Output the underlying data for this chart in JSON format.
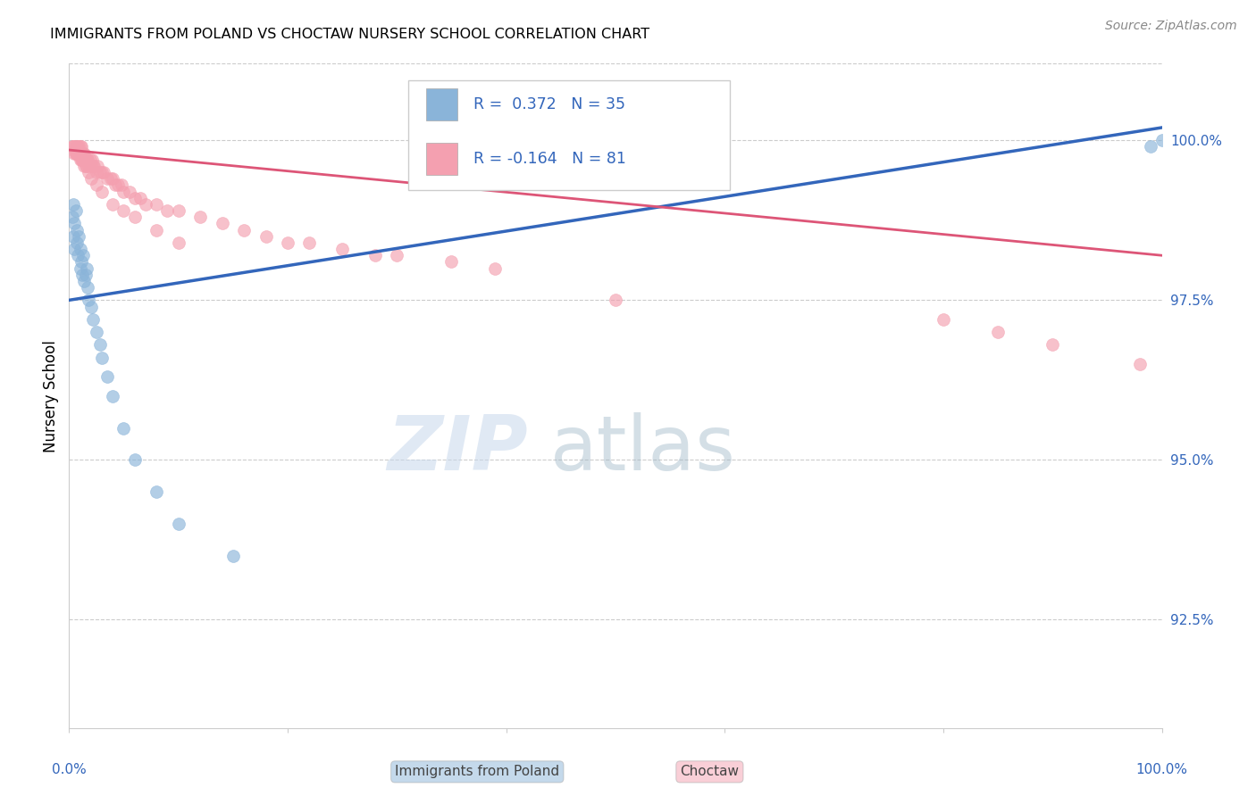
{
  "title": "IMMIGRANTS FROM POLAND VS CHOCTAW NURSERY SCHOOL CORRELATION CHART",
  "source": "Source: ZipAtlas.com",
  "ylabel": "Nursery School",
  "ytick_labels": [
    "100.0%",
    "97.5%",
    "95.0%",
    "92.5%"
  ],
  "ytick_values": [
    1.0,
    0.975,
    0.95,
    0.925
  ],
  "xlim": [
    0.0,
    1.0
  ],
  "ylim": [
    0.908,
    1.012
  ],
  "blue_color": "#8AB4D9",
  "pink_color": "#F4A0B0",
  "blue_line_color": "#3366BB",
  "pink_line_color": "#DD5577",
  "watermark_zip": "ZIP",
  "watermark_atlas": "atlas",
  "blue_scatter_x": [
    0.003,
    0.004,
    0.004,
    0.005,
    0.005,
    0.006,
    0.007,
    0.007,
    0.008,
    0.009,
    0.01,
    0.01,
    0.011,
    0.012,
    0.013,
    0.014,
    0.015,
    0.016,
    0.017,
    0.018,
    0.02,
    0.022,
    0.025,
    0.028,
    0.03,
    0.035,
    0.04,
    0.05,
    0.06,
    0.08,
    0.1,
    0.15,
    0.5,
    0.99,
    1.0
  ],
  "blue_scatter_y": [
    0.988,
    0.99,
    0.985,
    0.987,
    0.983,
    0.989,
    0.984,
    0.986,
    0.982,
    0.985,
    0.983,
    0.98,
    0.981,
    0.979,
    0.982,
    0.978,
    0.979,
    0.98,
    0.977,
    0.975,
    0.974,
    0.972,
    0.97,
    0.968,
    0.966,
    0.963,
    0.96,
    0.955,
    0.95,
    0.945,
    0.94,
    0.935,
    0.998,
    0.999,
    1.0
  ],
  "pink_scatter_x": [
    0.003,
    0.004,
    0.005,
    0.006,
    0.006,
    0.007,
    0.007,
    0.008,
    0.008,
    0.009,
    0.009,
    0.01,
    0.01,
    0.011,
    0.011,
    0.012,
    0.012,
    0.013,
    0.013,
    0.014,
    0.015,
    0.015,
    0.016,
    0.017,
    0.018,
    0.019,
    0.02,
    0.021,
    0.022,
    0.023,
    0.025,
    0.026,
    0.028,
    0.03,
    0.032,
    0.035,
    0.038,
    0.04,
    0.042,
    0.045,
    0.048,
    0.05,
    0.055,
    0.06,
    0.065,
    0.07,
    0.08,
    0.09,
    0.1,
    0.12,
    0.14,
    0.16,
    0.18,
    0.2,
    0.22,
    0.25,
    0.28,
    0.3,
    0.35,
    0.39,
    0.004,
    0.006,
    0.008,
    0.01,
    0.012,
    0.014,
    0.016,
    0.018,
    0.02,
    0.025,
    0.03,
    0.04,
    0.05,
    0.06,
    0.08,
    0.1,
    0.5,
    0.8,
    0.85,
    0.9,
    0.98
  ],
  "pink_scatter_y": [
    0.999,
    0.999,
    0.998,
    0.999,
    0.998,
    0.999,
    0.998,
    0.999,
    0.998,
    0.999,
    0.998,
    0.999,
    0.998,
    0.999,
    0.997,
    0.998,
    0.997,
    0.998,
    0.997,
    0.998,
    0.997,
    0.996,
    0.997,
    0.997,
    0.996,
    0.997,
    0.996,
    0.997,
    0.996,
    0.996,
    0.995,
    0.996,
    0.995,
    0.995,
    0.995,
    0.994,
    0.994,
    0.994,
    0.993,
    0.993,
    0.993,
    0.992,
    0.992,
    0.991,
    0.991,
    0.99,
    0.99,
    0.989,
    0.989,
    0.988,
    0.987,
    0.986,
    0.985,
    0.984,
    0.984,
    0.983,
    0.982,
    0.982,
    0.981,
    0.98,
    0.999,
    0.998,
    0.998,
    0.997,
    0.997,
    0.996,
    0.996,
    0.995,
    0.994,
    0.993,
    0.992,
    0.99,
    0.989,
    0.988,
    0.986,
    0.984,
    0.975,
    0.972,
    0.97,
    0.968,
    0.965
  ],
  "blue_trend_x": [
    0.0,
    1.0
  ],
  "blue_trend_y": [
    0.975,
    1.002
  ],
  "pink_trend_x": [
    0.0,
    1.0
  ],
  "pink_trend_y": [
    0.9985,
    0.982
  ]
}
